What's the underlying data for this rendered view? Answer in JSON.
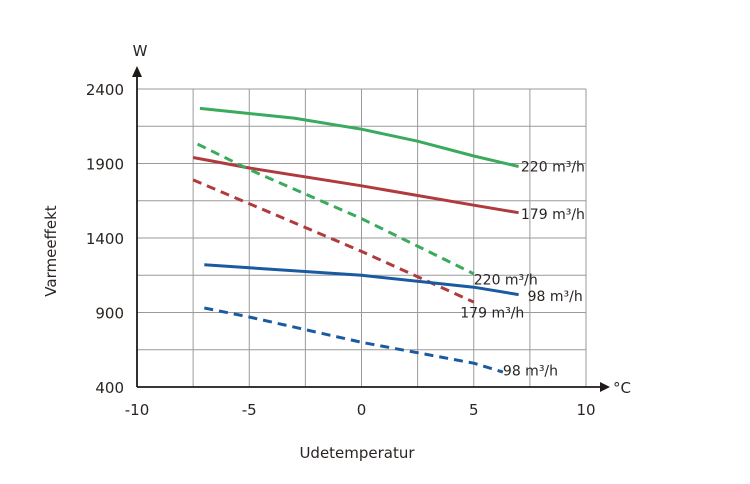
{
  "chart_data": {
    "type": "line",
    "xlabel": "Udetemperatur",
    "ylabel": "Varmeeffekt",
    "x_unit": "°C",
    "y_unit": "W",
    "xlim": [
      -10,
      10
    ],
    "ylim": [
      400,
      2400
    ],
    "x_ticks": [
      -10,
      -5,
      0,
      5,
      10
    ],
    "y_ticks": [
      400,
      900,
      1400,
      1900,
      2400
    ],
    "grid": true,
    "series": [
      {
        "label": "220 m³/h",
        "color": "#3aaa5c",
        "style": "solid",
        "x": [
          -7.2,
          -3,
          0,
          2.5,
          5,
          7
        ],
        "y": [
          2270,
          2205,
          2130,
          2050,
          1950,
          1880
        ]
      },
      {
        "label": "179 m³/h",
        "color": "#b13a3c",
        "style": "solid",
        "x": [
          -7.5,
          -5,
          0,
          5,
          7
        ],
        "y": [
          1940,
          1870,
          1750,
          1620,
          1570
        ]
      },
      {
        "label": "220 m³/h",
        "color": "#3aaa5c",
        "style": "dashed",
        "x": [
          -7.3,
          -5,
          0,
          5
        ],
        "y": [
          2030,
          1860,
          1530,
          1160
        ]
      },
      {
        "label": "179 m³/h",
        "color": "#b13a3c",
        "style": "dashed",
        "x": [
          -7.5,
          -5,
          0,
          5
        ],
        "y": [
          1790,
          1630,
          1310,
          970
        ]
      },
      {
        "label": "98 m³/h",
        "color": "#1a5aa0",
        "style": "solid",
        "x": [
          -7,
          -5,
          0,
          5,
          7
        ],
        "y": [
          1220,
          1200,
          1150,
          1070,
          1020
        ]
      },
      {
        "label": "98 m³/h",
        "color": "#1a5aa0",
        "style": "dashed",
        "x": [
          -7,
          -5,
          0,
          5,
          6.3
        ],
        "y": [
          930,
          870,
          700,
          560,
          500
        ]
      }
    ],
    "series_labels": [
      {
        "text": "220 m³/h",
        "x": 7.1,
        "y": 1880
      },
      {
        "text": "179 m³/h",
        "x": 7.1,
        "y": 1560
      },
      {
        "text": "220 m³/h",
        "x": 5.0,
        "y": 1120
      },
      {
        "text": "179 m³/h",
        "x": 4.4,
        "y": 900
      },
      {
        "text": "98 m³/h",
        "x": 7.4,
        "y": 1010
      },
      {
        "text": "98 m³/h",
        "x": 6.3,
        "y": 510
      }
    ]
  }
}
